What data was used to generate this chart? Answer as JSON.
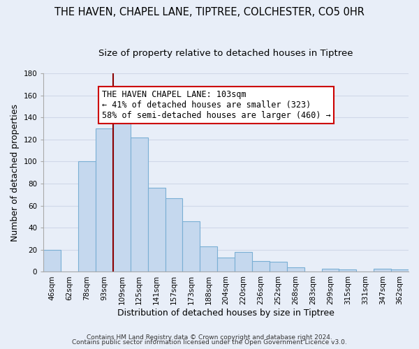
{
  "title": "THE HAVEN, CHAPEL LANE, TIPTREE, COLCHESTER, CO5 0HR",
  "subtitle": "Size of property relative to detached houses in Tiptree",
  "xlabel": "Distribution of detached houses by size in Tiptree",
  "ylabel": "Number of detached properties",
  "bar_labels": [
    "46sqm",
    "62sqm",
    "78sqm",
    "93sqm",
    "109sqm",
    "125sqm",
    "141sqm",
    "157sqm",
    "173sqm",
    "188sqm",
    "204sqm",
    "220sqm",
    "236sqm",
    "252sqm",
    "268sqm",
    "283sqm",
    "299sqm",
    "315sqm",
    "331sqm",
    "347sqm",
    "362sqm"
  ],
  "bar_values": [
    20,
    0,
    100,
    130,
    146,
    122,
    76,
    67,
    46,
    23,
    13,
    18,
    10,
    9,
    4,
    0,
    3,
    2,
    0,
    3,
    2
  ],
  "bar_color": "#c5d8ee",
  "bar_edge_color": "#7aafd4",
  "highlight_line_color": "#8b0000",
  "annotation_text": "THE HAVEN CHAPEL LANE: 103sqm\n← 41% of detached houses are smaller (323)\n58% of semi-detached houses are larger (460) →",
  "annotation_box_color": "#ffffff",
  "annotation_box_edge_color": "#cc0000",
  "ylim": [
    0,
    180
  ],
  "yticks": [
    0,
    20,
    40,
    60,
    80,
    100,
    120,
    140,
    160,
    180
  ],
  "footer_line1": "Contains HM Land Registry data © Crown copyright and database right 2024.",
  "footer_line2": "Contains public sector information licensed under the Open Government Licence v3.0.",
  "background_color": "#e8eef8",
  "grid_color": "#d0d8e8",
  "title_fontsize": 10.5,
  "subtitle_fontsize": 9.5,
  "axis_label_fontsize": 9,
  "tick_fontsize": 7.5,
  "annotation_fontsize": 8.5,
  "footer_fontsize": 6.5
}
